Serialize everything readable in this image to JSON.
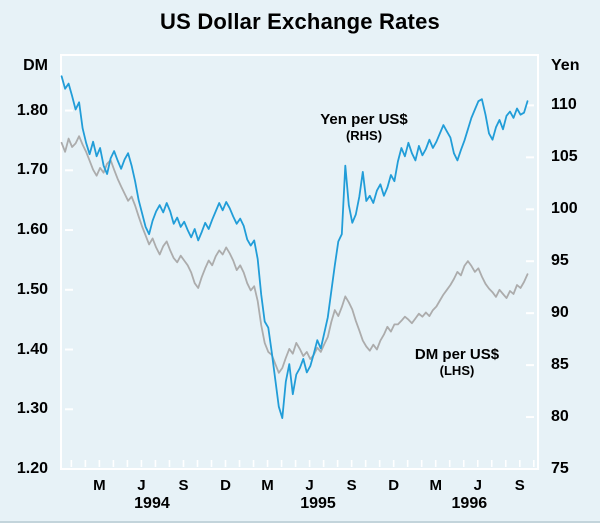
{
  "chart_data": {
    "type": "line",
    "title": "US Dollar Exchange Rates",
    "background_color": "#e7f2f7",
    "frame_color": "#ffffff",
    "legend_position": "annotations-inside-plot",
    "grid": false,
    "left_axis": {
      "unit": "DM",
      "tick_labels": [
        "1.80",
        "1.70",
        "1.60",
        "1.50",
        "1.40",
        "1.30",
        "1.20"
      ],
      "range": [
        1.2,
        1.893
      ]
    },
    "right_axis": {
      "unit": "Yen",
      "tick_labels": [
        "110",
        "105",
        "100",
        "95",
        "90",
        "85",
        "80",
        "75"
      ],
      "range": [
        75,
        114.85
      ]
    },
    "x_axis": {
      "range_months": [
        0.26,
        34.3
      ],
      "epoch": "months from January 1994",
      "minor_ticks_every_month": true,
      "month_ticks": [
        {
          "label": "M",
          "month": 3
        },
        {
          "label": "J",
          "month": 6
        },
        {
          "label": "S",
          "month": 9
        },
        {
          "label": "D",
          "month": 12
        },
        {
          "label": "M",
          "month": 15
        },
        {
          "label": "J",
          "month": 18
        },
        {
          "label": "S",
          "month": 21
        },
        {
          "label": "D",
          "month": 24
        },
        {
          "label": "M",
          "month": 27
        },
        {
          "label": "J",
          "month": 30
        },
        {
          "label": "S",
          "month": 33
        }
      ],
      "year_labels": [
        {
          "label": "1994",
          "month": 6.75
        },
        {
          "label": "1995",
          "month": 18.6
        },
        {
          "label": "1996",
          "month": 29.4
        }
      ]
    },
    "series": [
      {
        "name": "DM per US$",
        "axis": "left",
        "color": "#acacac",
        "annotation_line1": "DM per US$",
        "annotation_line2": "(LHS)",
        "x_start_month": 0.3,
        "x_step_month": 0.25,
        "values": [
          1.746,
          1.731,
          1.753,
          1.739,
          1.745,
          1.757,
          1.743,
          1.731,
          1.716,
          1.701,
          1.691,
          1.704,
          1.696,
          1.711,
          1.717,
          1.701,
          1.686,
          1.673,
          1.661,
          1.649,
          1.656,
          1.641,
          1.623,
          1.606,
          1.591,
          1.576,
          1.586,
          1.571,
          1.559,
          1.573,
          1.581,
          1.566,
          1.553,
          1.546,
          1.557,
          1.549,
          1.541,
          1.529,
          1.511,
          1.503,
          1.521,
          1.536,
          1.549,
          1.541,
          1.556,
          1.566,
          1.559,
          1.571,
          1.561,
          1.549,
          1.533,
          1.541,
          1.529,
          1.511,
          1.499,
          1.506,
          1.481,
          1.441,
          1.411,
          1.396,
          1.391,
          1.376,
          1.361,
          1.369,
          1.386,
          1.401,
          1.393,
          1.411,
          1.401,
          1.389,
          1.396,
          1.384,
          1.391,
          1.403,
          1.396,
          1.409,
          1.421,
          1.446,
          1.466,
          1.456,
          1.471,
          1.489,
          1.479,
          1.467,
          1.448,
          1.432,
          1.415,
          1.405,
          1.398,
          1.408,
          1.4,
          1.415,
          1.425,
          1.438,
          1.43,
          1.442,
          1.442,
          1.448,
          1.455,
          1.45,
          1.444,
          1.452,
          1.46,
          1.455,
          1.462,
          1.456,
          1.466,
          1.472,
          1.482,
          1.492,
          1.5,
          1.508,
          1.518,
          1.53,
          1.524,
          1.54,
          1.548,
          1.54,
          1.53,
          1.536,
          1.522,
          1.51,
          1.502,
          1.496,
          1.488,
          1.5,
          1.493,
          1.486,
          1.498,
          1.493,
          1.508,
          1.503,
          1.513,
          1.526
        ]
      },
      {
        "name": "Yen per US$",
        "axis": "right",
        "color": "#219dd8",
        "annotation_line1": "Yen per US$",
        "annotation_line2": "(RHS)",
        "x_start_month": 0.3,
        "x_step_month": 0.25,
        "values": [
          112.8,
          111.6,
          112.1,
          110.9,
          109.6,
          110.3,
          107.8,
          106.4,
          105.3,
          106.5,
          105.1,
          105.9,
          104.2,
          103.4,
          104.9,
          105.6,
          104.7,
          103.9,
          104.8,
          105.4,
          104.2,
          102.7,
          100.9,
          99.6,
          98.3,
          97.6,
          98.9,
          99.8,
          100.4,
          99.7,
          100.6,
          99.8,
          98.6,
          99.2,
          98.3,
          98.8,
          98.0,
          97.3,
          98.1,
          97.0,
          97.8,
          98.7,
          98.1,
          99.0,
          99.8,
          100.6,
          99.9,
          100.7,
          100.1,
          99.3,
          98.6,
          99.1,
          98.4,
          97.1,
          96.5,
          97.0,
          95.2,
          91.8,
          89.2,
          88.6,
          86.2,
          83.6,
          81.0,
          79.9,
          83.4,
          85.1,
          82.2,
          84.1,
          84.7,
          85.6,
          84.3,
          84.9,
          86.1,
          87.4,
          86.6,
          88.1,
          89.6,
          92.1,
          94.6,
          96.9,
          97.6,
          104.2,
          100.4,
          98.7,
          99.5,
          101.2,
          103.6,
          100.8,
          101.3,
          100.6,
          101.8,
          102.4,
          101.3,
          102.1,
          103.3,
          102.7,
          104.6,
          105.9,
          105.1,
          106.4,
          105.4,
          104.7,
          106.1,
          105.2,
          105.8,
          106.7,
          105.9,
          106.5,
          107.3,
          108.1,
          107.5,
          106.9,
          105.4,
          104.7,
          105.7,
          106.6,
          107.7,
          108.8,
          109.6,
          110.4,
          110.6,
          109.1,
          107.3,
          106.7,
          107.9,
          108.6,
          107.7,
          109.0,
          109.4,
          108.8,
          109.7,
          109.1,
          109.3,
          110.4
        ]
      }
    ]
  }
}
